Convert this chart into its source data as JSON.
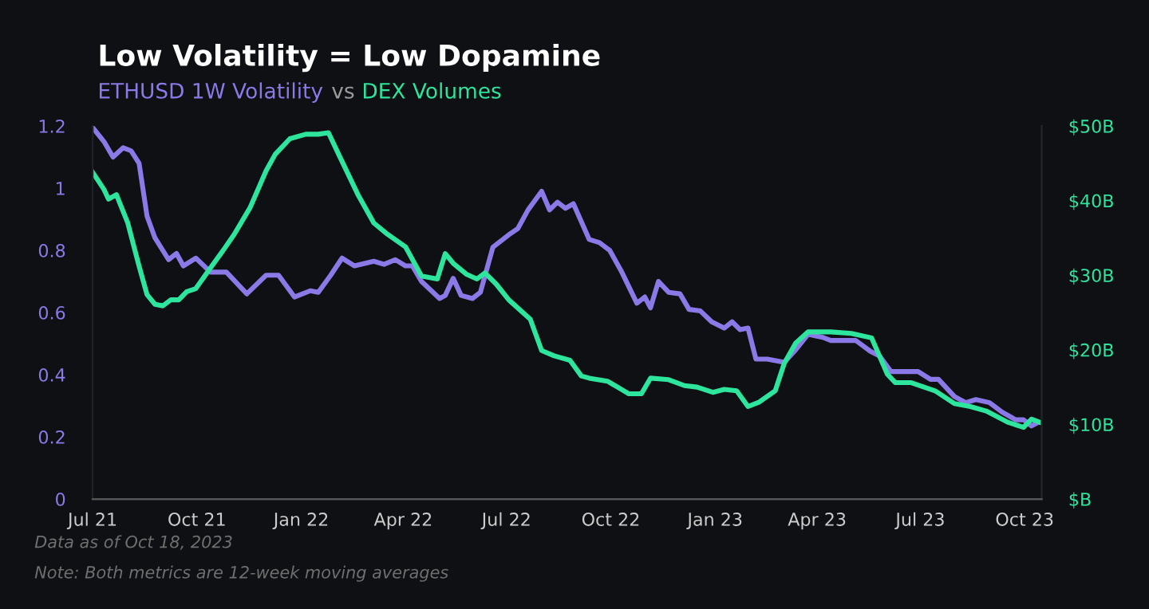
{
  "chart_data": {
    "type": "line",
    "title": "Low Volatility = Low Dopamine",
    "subtitle": "vs",
    "xlim": [
      "2021-07-01",
      "2023-10-16"
    ],
    "xticks": [
      {
        "value": "2021-07-01",
        "label": "Jul 21"
      },
      {
        "value": "2021-10-01",
        "label": "Oct 21"
      },
      {
        "value": "2022-01-01",
        "label": "Jan 22"
      },
      {
        "value": "2022-04-01",
        "label": "Apr 22"
      },
      {
        "value": "2022-07-01",
        "label": "Jul 22"
      },
      {
        "value": "2022-10-01",
        "label": "Oct 22"
      },
      {
        "value": "2023-01-01",
        "label": "Jan 23"
      },
      {
        "value": "2023-04-01",
        "label": "Apr 23"
      },
      {
        "value": "2023-07-01",
        "label": "Jul 23"
      },
      {
        "value": "2023-10-01",
        "label": "Oct 23"
      }
    ],
    "ylim": [
      0,
      1.2
    ],
    "yticks": [
      0,
      0.2,
      0.4,
      0.6,
      0.8,
      1,
      1.2
    ],
    "y2lim": [
      0,
      50
    ],
    "y2ticks": [
      {
        "value": 0,
        "label": "$B"
      },
      {
        "value": 10,
        "label": "$10B"
      },
      {
        "value": 20,
        "label": "$20B"
      },
      {
        "value": 30,
        "label": "$30B"
      },
      {
        "value": 40,
        "label": "$40B"
      },
      {
        "value": 50,
        "label": "$50B"
      }
    ],
    "grid": false,
    "legend": false,
    "marker": "none",
    "line_style": "solid",
    "series": [
      {
        "name": "ETHUSD 1W Volatility",
        "color": "#8b79e8",
        "axis": "y",
        "x": [
          "2021-07-01",
          "2021-07-11",
          "2021-07-19",
          "2021-07-28",
          "2021-08-04",
          "2021-08-11",
          "2021-08-18",
          "2021-08-25",
          "2021-09-06",
          "2021-09-13",
          "2021-09-19",
          "2021-09-30",
          "2021-10-13",
          "2021-10-27",
          "2021-11-14",
          "2021-12-01",
          "2021-12-12",
          "2021-12-26",
          "2022-01-09",
          "2022-01-16",
          "2022-01-27",
          "2022-02-06",
          "2022-02-17",
          "2022-03-06",
          "2022-03-15",
          "2022-03-25",
          "2022-04-03",
          "2022-04-09",
          "2022-04-17",
          "2022-05-03",
          "2022-05-08",
          "2022-05-15",
          "2022-05-22",
          "2022-06-01",
          "2022-06-08",
          "2022-06-19",
          "2022-07-03",
          "2022-07-11",
          "2022-07-20",
          "2022-08-01",
          "2022-08-08",
          "2022-08-15",
          "2022-08-22",
          "2022-08-29",
          "2022-09-12",
          "2022-09-21",
          "2022-09-30",
          "2022-10-10",
          "2022-10-24",
          "2022-10-31",
          "2022-11-05",
          "2022-11-12",
          "2022-11-21",
          "2022-12-01",
          "2022-12-09",
          "2022-12-19",
          "2022-12-29",
          "2023-01-09",
          "2023-01-16",
          "2023-01-23",
          "2023-01-30",
          "2023-02-06",
          "2023-02-16",
          "2023-03-03",
          "2023-03-13",
          "2023-03-24",
          "2023-04-06",
          "2023-04-13",
          "2023-04-24",
          "2023-05-05",
          "2023-05-18",
          "2023-05-26",
          "2023-06-05",
          "2023-06-15",
          "2023-06-29",
          "2023-07-10",
          "2023-07-17",
          "2023-07-31",
          "2023-08-10",
          "2023-08-19",
          "2023-08-31",
          "2023-09-11",
          "2023-09-23",
          "2023-09-30",
          "2023-10-07",
          "2023-10-12"
        ],
        "values": [
          1.195,
          1.15,
          1.1,
          1.13,
          1.12,
          1.08,
          0.91,
          0.84,
          0.77,
          0.79,
          0.75,
          0.775,
          0.73,
          0.73,
          0.66,
          0.72,
          0.72,
          0.65,
          0.67,
          0.665,
          0.72,
          0.775,
          0.75,
          0.765,
          0.755,
          0.77,
          0.75,
          0.75,
          0.7,
          0.645,
          0.655,
          0.71,
          0.655,
          0.645,
          0.665,
          0.81,
          0.85,
          0.87,
          0.93,
          0.99,
          0.93,
          0.955,
          0.935,
          0.95,
          0.835,
          0.825,
          0.8,
          0.735,
          0.63,
          0.65,
          0.615,
          0.7,
          0.665,
          0.66,
          0.61,
          0.605,
          0.57,
          0.55,
          0.57,
          0.545,
          0.55,
          0.45,
          0.45,
          0.44,
          0.48,
          0.53,
          0.52,
          0.51,
          0.51,
          0.51,
          0.475,
          0.46,
          0.41,
          0.41,
          0.41,
          0.385,
          0.385,
          0.33,
          0.31,
          0.32,
          0.31,
          0.28,
          0.255,
          0.255,
          0.235,
          0.245
        ]
      },
      {
        "name": "DEX Volumes",
        "color": "#2ee59d",
        "axis": "y2",
        "x": [
          "2021-07-01",
          "2021-07-11",
          "2021-07-15",
          "2021-07-22",
          "2021-08-01",
          "2021-08-11",
          "2021-08-18",
          "2021-08-25",
          "2021-09-01",
          "2021-09-08",
          "2021-09-15",
          "2021-09-22",
          "2021-09-30",
          "2021-10-13",
          "2021-10-24",
          "2021-11-03",
          "2021-11-17",
          "2021-12-01",
          "2021-12-09",
          "2021-12-22",
          "2022-01-05",
          "2022-01-16",
          "2022-01-25",
          "2022-02-03",
          "2022-02-20",
          "2022-03-06",
          "2022-03-18",
          "2022-04-03",
          "2022-04-17",
          "2022-05-01",
          "2022-05-08",
          "2022-05-15",
          "2022-05-27",
          "2022-06-05",
          "2022-06-12",
          "2022-06-22",
          "2022-07-03",
          "2022-07-22",
          "2022-08-01",
          "2022-08-12",
          "2022-08-26",
          "2022-09-05",
          "2022-09-12",
          "2022-09-28",
          "2022-10-07",
          "2022-10-17",
          "2022-10-28",
          "2022-11-05",
          "2022-11-21",
          "2022-12-05",
          "2022-12-16",
          "2022-12-30",
          "2023-01-09",
          "2023-01-20",
          "2023-01-30",
          "2023-02-09",
          "2023-02-23",
          "2023-03-03",
          "2023-03-13",
          "2023-03-24",
          "2023-04-13",
          "2023-05-01",
          "2023-05-19",
          "2023-06-02",
          "2023-06-09",
          "2023-06-23",
          "2023-07-14",
          "2023-07-31",
          "2023-08-14",
          "2023-08-28",
          "2023-09-16",
          "2023-09-30",
          "2023-10-07",
          "2023-10-14"
        ],
        "values": [
          43.8,
          41.5,
          40.2,
          40.8,
          37,
          31.2,
          27.4,
          26.1,
          25.9,
          26.7,
          26.7,
          27.8,
          28.2,
          31,
          33.3,
          35.5,
          39.1,
          44,
          46.2,
          48.3,
          48.9,
          48.9,
          49.1,
          46.2,
          40.8,
          37,
          35.5,
          33.8,
          29.9,
          29.5,
          32.9,
          31.6,
          30.1,
          29.5,
          30.3,
          28.8,
          26.7,
          24.1,
          19.9,
          19.2,
          18.6,
          16.5,
          16.2,
          15.8,
          15,
          14.1,
          14.1,
          16.2,
          16,
          15.2,
          15,
          14.3,
          14.7,
          14.5,
          12.4,
          13,
          14.5,
          18.2,
          20.9,
          22.4,
          22.4,
          22.2,
          21.6,
          16.7,
          15.6,
          15.6,
          14.5,
          12.8,
          12.4,
          11.8,
          10.3,
          9.6,
          10.7,
          10.3
        ]
      }
    ],
    "annotations": [
      "Data as of Oct 18, 2023",
      "Note: Both metrics are 12-week moving averages"
    ]
  }
}
